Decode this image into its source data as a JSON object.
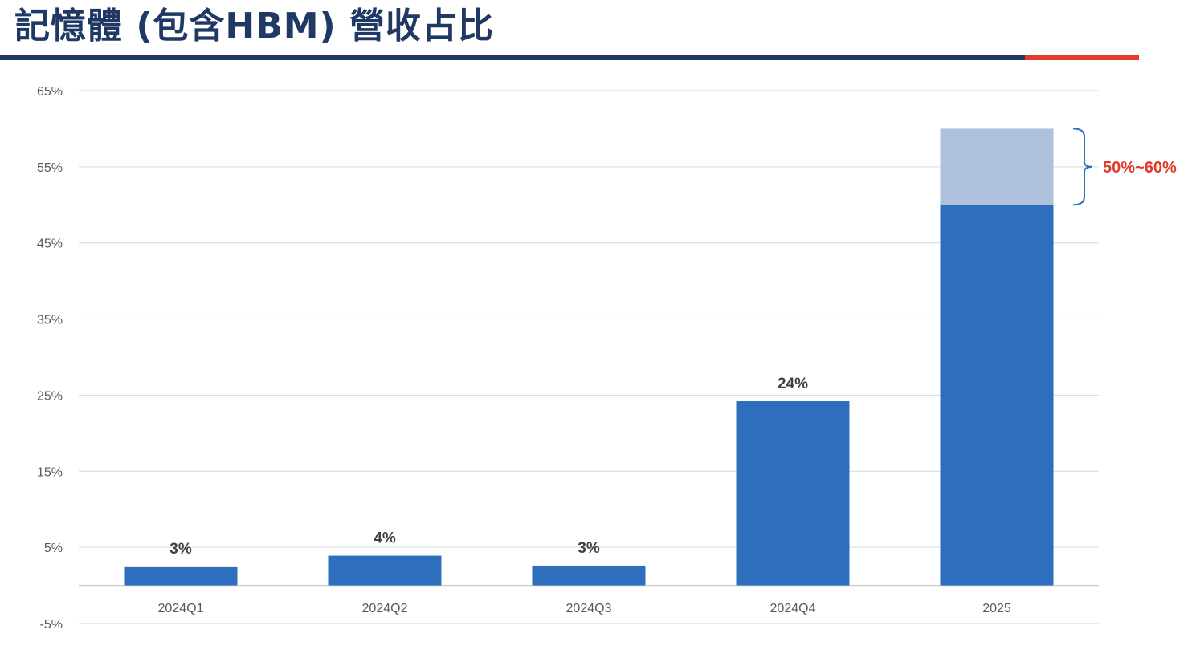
{
  "title": "記憶體 (包含HBM) 營收占比",
  "colors": {
    "bar": "#2e6fbd",
    "bar_range": "#adc0dc",
    "title": "#1f3864",
    "accent_red": "#e03b2c",
    "grid": "#d9d9d9"
  },
  "chart_data": {
    "type": "bar",
    "categories": [
      "2024Q1",
      "2024Q2",
      "2024Q3",
      "2024Q4",
      "2025"
    ],
    "values": [
      2.5,
      3.9,
      2.6,
      24.2,
      50
    ],
    "data_labels": [
      "3%",
      "4%",
      "3%",
      "24%",
      ""
    ],
    "range_upper": [
      null,
      null,
      null,
      null,
      60
    ],
    "range_label": "50%~60%",
    "ylim": [
      -5,
      65
    ],
    "yticks": [
      -5,
      5,
      15,
      25,
      35,
      45,
      55,
      65
    ],
    "ytick_labels": [
      "-5%",
      "5%",
      "15%",
      "25%",
      "35%",
      "45%",
      "55%",
      "65%"
    ],
    "grid": true,
    "xlabel": "",
    "ylabel": ""
  }
}
